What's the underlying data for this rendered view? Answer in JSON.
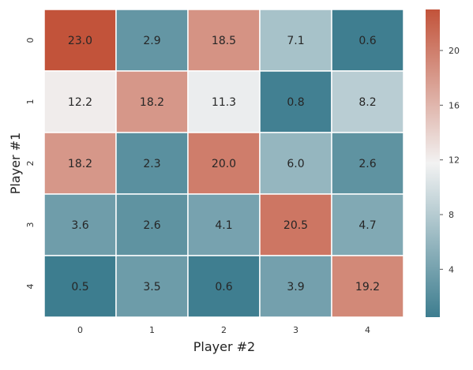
{
  "chart_data": {
    "type": "heatmap",
    "xlabel": "Player #2",
    "ylabel": "Player #1",
    "x_categories": [
      "0",
      "1",
      "2",
      "3",
      "4"
    ],
    "y_categories": [
      "0",
      "1",
      "2",
      "3",
      "4"
    ],
    "values": [
      [
        23.0,
        2.9,
        18.5,
        7.1,
        0.6
      ],
      [
        12.2,
        18.2,
        11.3,
        0.8,
        8.2
      ],
      [
        18.2,
        2.3,
        20.0,
        6.0,
        2.6
      ],
      [
        3.6,
        2.6,
        4.1,
        20.5,
        4.7
      ],
      [
        0.5,
        3.5,
        0.6,
        3.9,
        19.2
      ]
    ],
    "cell_labels": [
      [
        "23.0",
        "2.9",
        "18.5",
        "7.1",
        "0.6"
      ],
      [
        "12.2",
        "18.2",
        "11.3",
        "0.8",
        "8.2"
      ],
      [
        "18.2",
        "2.3",
        "20.0",
        "6.0",
        "2.6"
      ],
      [
        "3.6",
        "2.6",
        "4.1",
        "20.5",
        "4.7"
      ],
      [
        "0.5",
        "3.5",
        "0.6",
        "3.9",
        "19.2"
      ]
    ],
    "colorbar": {
      "range": [
        0.5,
        23.0
      ],
      "ticks": [
        4,
        8,
        12,
        16,
        20
      ],
      "tick_labels": [
        "4",
        "8",
        "12",
        "16",
        "20"
      ],
      "colors": {
        "low": "#3d7d8f",
        "mid": "#f2f2f2",
        "high": "#c2533a"
      }
    },
    "grid": false
  }
}
